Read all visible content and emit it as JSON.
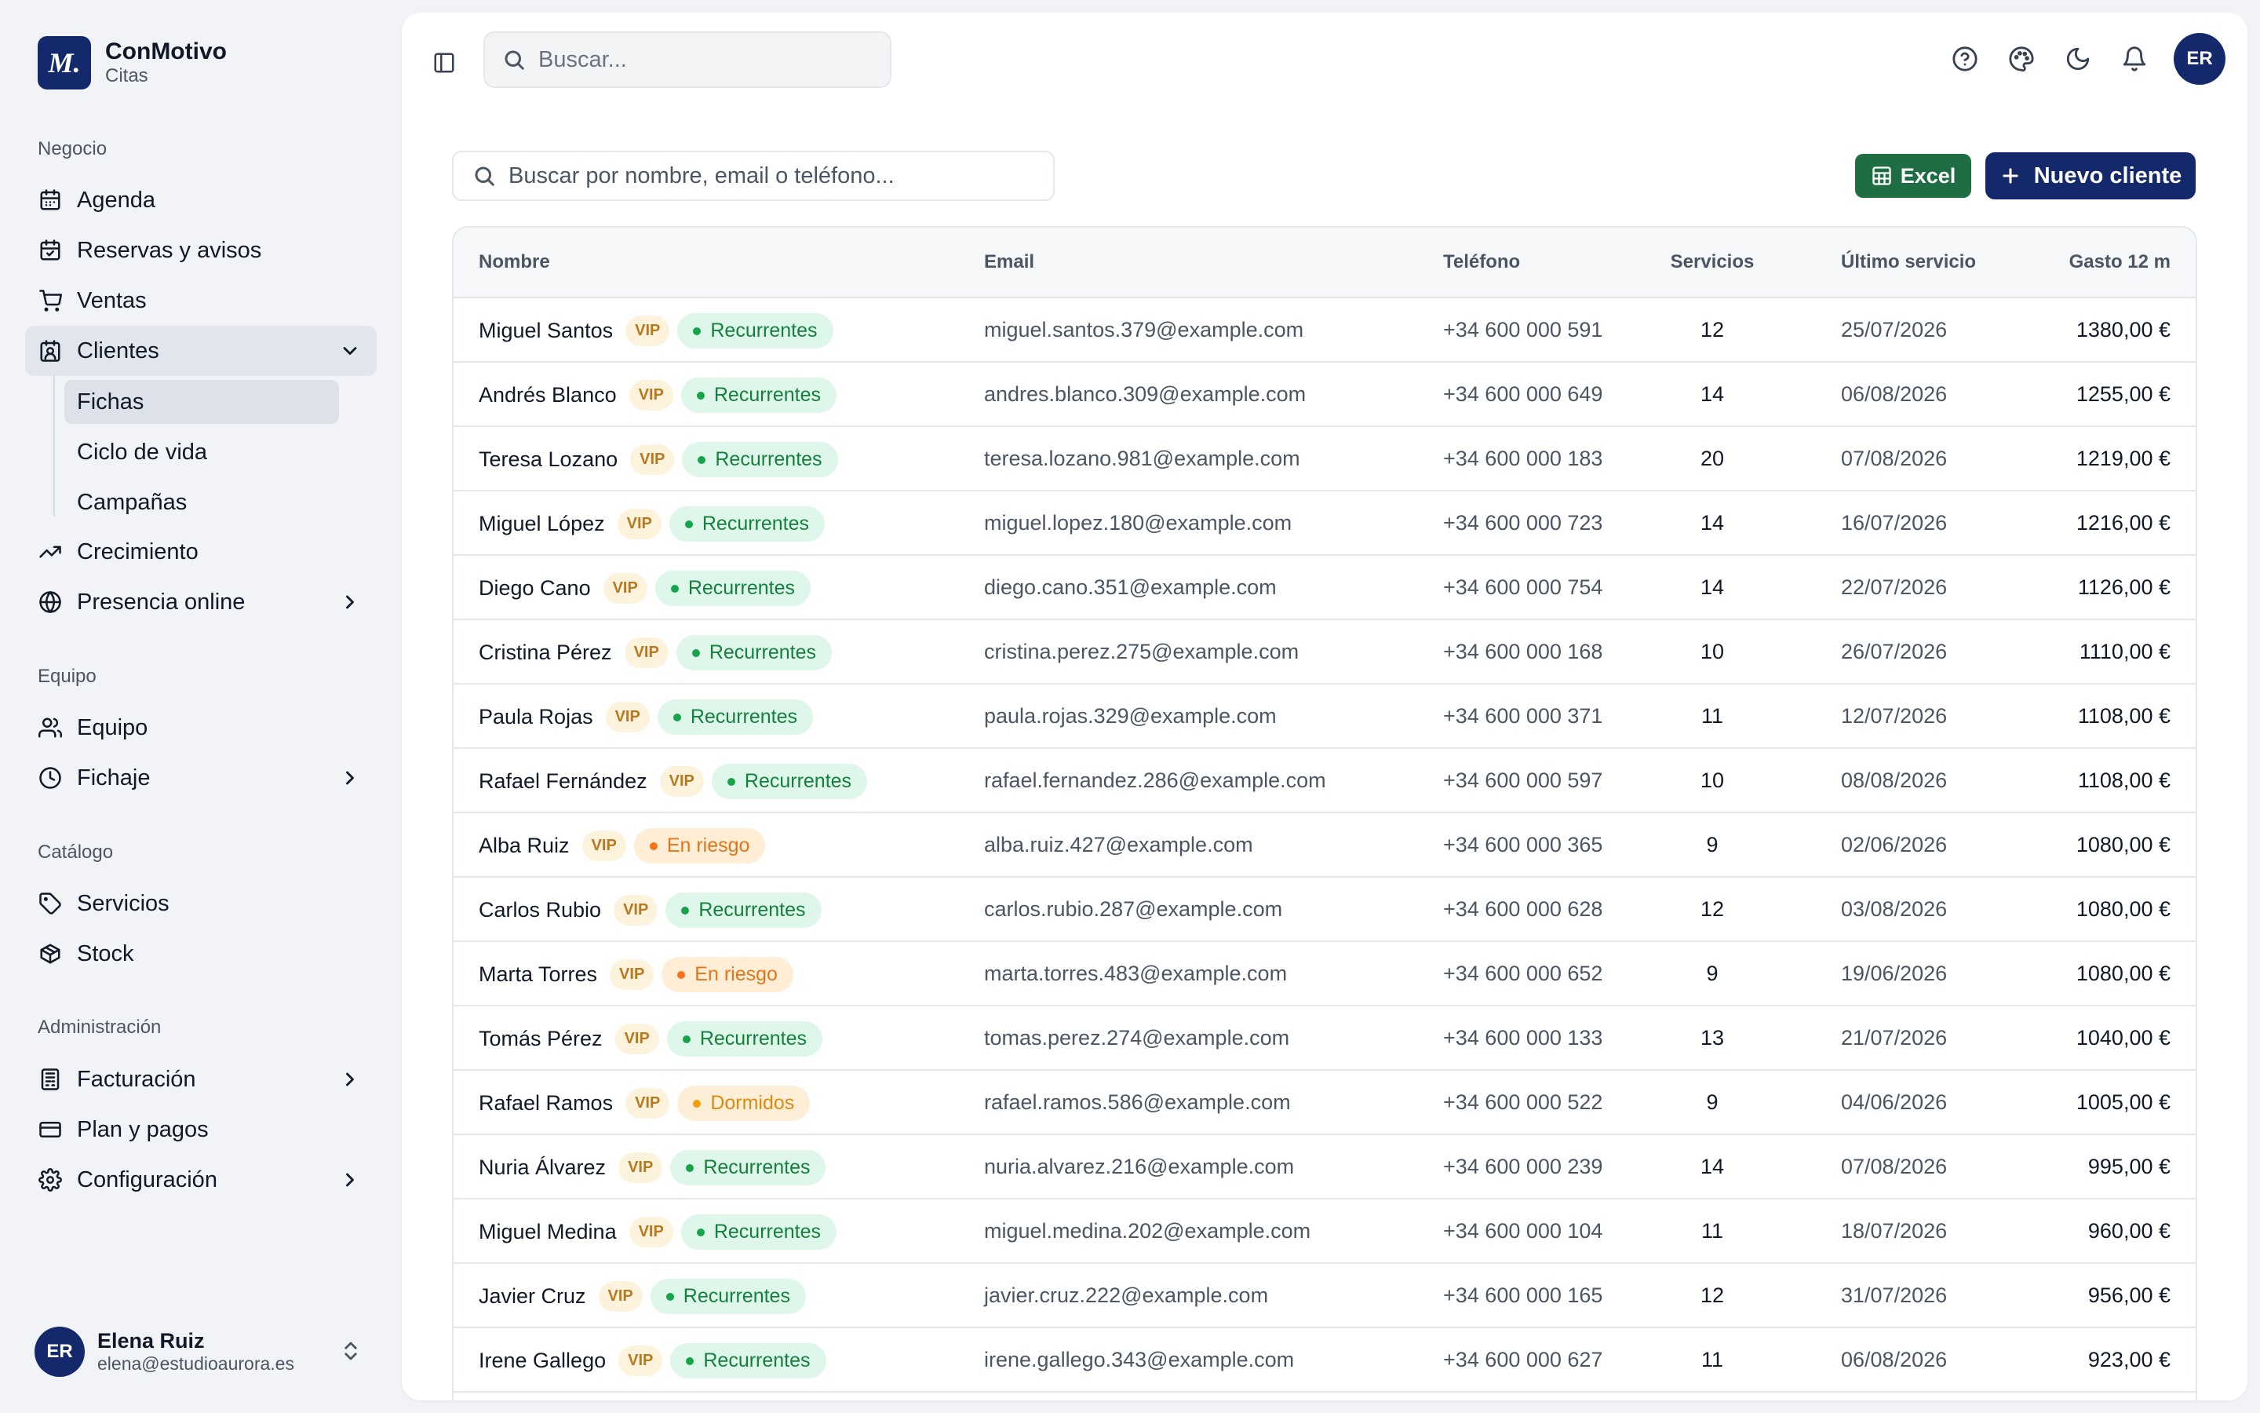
{
  "brand": {
    "logo": "M.",
    "name": "ConMotivo",
    "subtitle": "Citas"
  },
  "sections": {
    "negocio": "Negocio",
    "equipo": "Equipo",
    "catalogo": "Catálogo",
    "admin": "Administración"
  },
  "nav": {
    "agenda": "Agenda",
    "reservas": "Reservas y avisos",
    "ventas": "Ventas",
    "clientes": "Clientes",
    "fichas": "Fichas",
    "ciclo": "Ciclo de vida",
    "campanas": "Campañas",
    "crecimiento": "Crecimiento",
    "presencia": "Presencia online",
    "equipo": "Equipo",
    "fichaje": "Fichaje",
    "servicios": "Servicios",
    "stock": "Stock",
    "facturacion": "Facturación",
    "plan": "Plan y pagos",
    "configuracion": "Configuración"
  },
  "user": {
    "initials": "ER",
    "name": "Elena Ruiz",
    "email": "elena@estudioaurora.es"
  },
  "topbar": {
    "search_placeholder": "Buscar...",
    "avatar_initials": "ER"
  },
  "toolbar": {
    "client_search_placeholder": "Buscar por nombre, email o teléfono...",
    "excel_label": "Excel",
    "new_client_label": "Nuevo cliente"
  },
  "table": {
    "columns": {
      "name": "Nombre",
      "email": "Email",
      "phone": "Teléfono",
      "services": "Servicios",
      "last": "Último servicio",
      "spend": "Gasto 12 m"
    },
    "vip_label": "VIP",
    "rows": [
      {
        "name": "Miguel Santos",
        "vip": "VIP",
        "segment": "Recurrentes",
        "segment_type": "rec",
        "email": "miguel.santos.379@example.com",
        "phone": "+34 600 000 591",
        "services": "12",
        "last": "25/07/2026",
        "spend": "1380,00 €"
      },
      {
        "name": "Andrés Blanco",
        "vip": "VIP",
        "segment": "Recurrentes",
        "segment_type": "rec",
        "email": "andres.blanco.309@example.com",
        "phone": "+34 600 000 649",
        "services": "14",
        "last": "06/08/2026",
        "spend": "1255,00 €"
      },
      {
        "name": "Teresa Lozano",
        "vip": "VIP",
        "segment": "Recurrentes",
        "segment_type": "rec",
        "email": "teresa.lozano.981@example.com",
        "phone": "+34 600 000 183",
        "services": "20",
        "last": "07/08/2026",
        "spend": "1219,00 €"
      },
      {
        "name": "Miguel López",
        "vip": "VIP",
        "segment": "Recurrentes",
        "segment_type": "rec",
        "email": "miguel.lopez.180@example.com",
        "phone": "+34 600 000 723",
        "services": "14",
        "last": "16/07/2026",
        "spend": "1216,00 €"
      },
      {
        "name": "Diego Cano",
        "vip": "VIP",
        "segment": "Recurrentes",
        "segment_type": "rec",
        "email": "diego.cano.351@example.com",
        "phone": "+34 600 000 754",
        "services": "14",
        "last": "22/07/2026",
        "spend": "1126,00 €"
      },
      {
        "name": "Cristina Pérez",
        "vip": "VIP",
        "segment": "Recurrentes",
        "segment_type": "rec",
        "email": "cristina.perez.275@example.com",
        "phone": "+34 600 000 168",
        "services": "10",
        "last": "26/07/2026",
        "spend": "1110,00 €"
      },
      {
        "name": "Paula Rojas",
        "vip": "VIP",
        "segment": "Recurrentes",
        "segment_type": "rec",
        "email": "paula.rojas.329@example.com",
        "phone": "+34 600 000 371",
        "services": "11",
        "last": "12/07/2026",
        "spend": "1108,00 €"
      },
      {
        "name": "Rafael Fernández",
        "vip": "VIP",
        "segment": "Recurrentes",
        "segment_type": "rec",
        "email": "rafael.fernandez.286@example.com",
        "phone": "+34 600 000 597",
        "services": "10",
        "last": "08/08/2026",
        "spend": "1108,00 €"
      },
      {
        "name": "Alba Ruiz",
        "vip": "VIP",
        "segment": "En riesgo",
        "segment_type": "risk",
        "email": "alba.ruiz.427@example.com",
        "phone": "+34 600 000 365",
        "services": "9",
        "last": "02/06/2026",
        "spend": "1080,00 €"
      },
      {
        "name": "Carlos Rubio",
        "vip": "VIP",
        "segment": "Recurrentes",
        "segment_type": "rec",
        "email": "carlos.rubio.287@example.com",
        "phone": "+34 600 000 628",
        "services": "12",
        "last": "03/08/2026",
        "spend": "1080,00 €"
      },
      {
        "name": "Marta Torres",
        "vip": "VIP",
        "segment": "En riesgo",
        "segment_type": "risk",
        "email": "marta.torres.483@example.com",
        "phone": "+34 600 000 652",
        "services": "9",
        "last": "19/06/2026",
        "spend": "1080,00 €"
      },
      {
        "name": "Tomás Pérez",
        "vip": "VIP",
        "segment": "Recurrentes",
        "segment_type": "rec",
        "email": "tomas.perez.274@example.com",
        "phone": "+34 600 000 133",
        "services": "13",
        "last": "21/07/2026",
        "spend": "1040,00 €"
      },
      {
        "name": "Rafael Ramos",
        "vip": "VIP",
        "segment": "Dormidos",
        "segment_type": "dorm",
        "email": "rafael.ramos.586@example.com",
        "phone": "+34 600 000 522",
        "services": "9",
        "last": "04/06/2026",
        "spend": "1005,00 €"
      },
      {
        "name": "Nuria Álvarez",
        "vip": "VIP",
        "segment": "Recurrentes",
        "segment_type": "rec",
        "email": "nuria.alvarez.216@example.com",
        "phone": "+34 600 000 239",
        "services": "14",
        "last": "07/08/2026",
        "spend": "995,00 €"
      },
      {
        "name": "Miguel Medina",
        "vip": "VIP",
        "segment": "Recurrentes",
        "segment_type": "rec",
        "email": "miguel.medina.202@example.com",
        "phone": "+34 600 000 104",
        "services": "11",
        "last": "18/07/2026",
        "spend": "960,00 €"
      },
      {
        "name": "Javier Cruz",
        "vip": "VIP",
        "segment": "Recurrentes",
        "segment_type": "rec",
        "email": "javier.cruz.222@example.com",
        "phone": "+34 600 000 165",
        "services": "12",
        "last": "31/07/2026",
        "spend": "956,00 €"
      },
      {
        "name": "Irene Gallego",
        "vip": "VIP",
        "segment": "Recurrentes",
        "segment_type": "rec",
        "email": "irene.gallego.343@example.com",
        "phone": "+34 600 000 627",
        "services": "11",
        "last": "06/08/2026",
        "spend": "923,00 €"
      }
    ]
  }
}
